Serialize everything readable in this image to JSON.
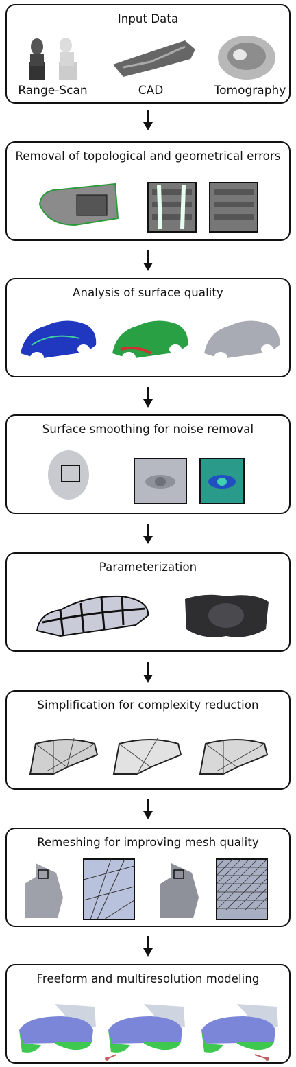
{
  "stages": [
    {
      "title": "Input Data",
      "labels": [
        "Range-Scan",
        "CAD",
        "Tomography"
      ]
    },
    {
      "title": "Removal of topological and geometrical errors"
    },
    {
      "title": "Analysis of surface quality"
    },
    {
      "title": "Surface smoothing for noise removal"
    },
    {
      "title": "Parameterization"
    },
    {
      "title": "Simplification for complexity reduction"
    },
    {
      "title": "Remeshing for improving mesh quality"
    },
    {
      "title": "Freeform and multiresolution modeling"
    }
  ]
}
